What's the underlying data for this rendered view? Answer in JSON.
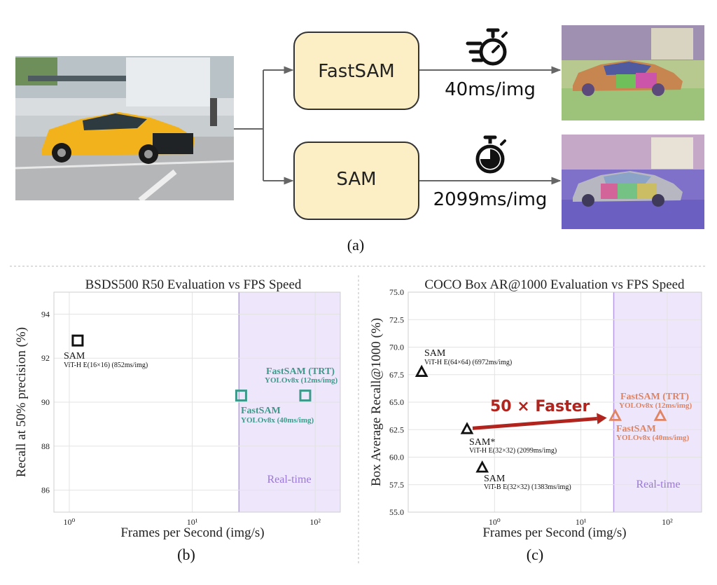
{
  "panel_a": {
    "sublabel": "(a)",
    "fast_box_label": "FastSAM",
    "sam_box_label": "SAM",
    "fast_time": "40ms/img",
    "sam_time": "2099ms/img",
    "icons": [
      "input-car-photo",
      "stopwatch-fast-icon",
      "stopwatch-icon",
      "fastsam-segmentation-photo",
      "sam-segmentation-photo"
    ]
  },
  "panel_b": {
    "sublabel": "(b)",
    "title": "BSDS500 R50 Evaluation vs FPS Speed",
    "xlabel": "Frames per Second (img/s)",
    "ylabel": "Recall at 50% precision (%)",
    "region_label": "Real-time",
    "x_ticks": [
      "10⁰",
      "10¹",
      "10²"
    ],
    "y_ticks": [
      "86",
      "88",
      "90",
      "92",
      "94"
    ],
    "annotations": {
      "sam_name": "SAM",
      "sam_detail": "ViT-H E(16×16) (852ms/img)",
      "trt_name": "FastSAM (TRT)",
      "trt_detail": "YOLOv8x (12ms/img)",
      "fast_name": "FastSAM",
      "fast_detail": "YOLOv8x (40ms/img)"
    },
    "colors": {
      "sam": "#111111",
      "fastsam": "#3d9a8b",
      "realtime": "#eee6fb",
      "realtime_border": "#b79be6",
      "realtime_text": "#9a78d6"
    }
  },
  "panel_c": {
    "sublabel": "(c)",
    "title": "COCO Box AR@1000 Evaluation vs FPS Speed",
    "xlabel": "Frames per Second (img/s)",
    "ylabel": "Box Average Recall@1000 (%)",
    "region_label": "Real-time",
    "arrow_label": "50 × Faster",
    "x_ticks": [
      "10⁰",
      "10¹",
      "10²"
    ],
    "y_ticks": [
      "55.0",
      "57.5",
      "60.0",
      "62.5",
      "65.0",
      "67.5",
      "70.0",
      "72.5",
      "75.0"
    ],
    "annotations": {
      "sam64_name": "SAM",
      "sam64_detail": "ViT-H E(64×64) (6972ms/img)",
      "samstar_name": "SAM*",
      "samstar_detail": "ViT-H E(32×32) (2099ms/img)",
      "samb_name": "SAM",
      "samb_detail": "ViT-B E(32×32) (1383ms/img)",
      "trt_name": "FastSAM (TRT)",
      "trt_detail": "YOLOv8x (12ms/img)",
      "fast_name": "FastSAM",
      "fast_detail": "YOLOv8x (40ms/img)"
    },
    "colors": {
      "sam": "#111111",
      "fastsam": "#e08462",
      "arrow": "#b0241d"
    }
  },
  "chart_data": [
    {
      "type": "scatter",
      "title": "BSDS500 R50 Evaluation vs FPS Speed",
      "xlabel": "Frames per Second (img/s)",
      "ylabel": "Recall at 50% precision (%)",
      "x_scale": "log",
      "xlim": [
        0.75,
        160
      ],
      "ylim": [
        85,
        95
      ],
      "grid": true,
      "realtime_region": [
        24,
        160
      ],
      "series": [
        {
          "name": "SAM",
          "marker": "square",
          "x": [
            1.17
          ],
          "y": [
            92.8
          ]
        },
        {
          "name": "FastSAM",
          "marker": "square",
          "x": [
            25
          ],
          "y": [
            90.3
          ]
        },
        {
          "name": "FastSAM (TRT)",
          "marker": "square",
          "x": [
            83
          ],
          "y": [
            90.3
          ]
        }
      ]
    },
    {
      "type": "scatter",
      "title": "COCO Box AR@1000 Evaluation vs FPS Speed",
      "xlabel": "Frames per Second (img/s)",
      "ylabel": "Box Average Recall@1000 (%)",
      "x_scale": "log",
      "xlim": [
        0.1,
        250
      ],
      "ylim": [
        55.0,
        75.0
      ],
      "grid": true,
      "realtime_region": [
        24,
        250
      ],
      "series": [
        {
          "name": "SAM",
          "marker": "triangle",
          "x": [
            0.143
          ],
          "y": [
            67.7
          ]
        },
        {
          "name": "SAM*",
          "marker": "triangle",
          "x": [
            0.48
          ],
          "y": [
            62.5
          ]
        },
        {
          "name": "SAM",
          "marker": "triangle",
          "x": [
            0.72
          ],
          "y": [
            59.0
          ]
        },
        {
          "name": "FastSAM",
          "marker": "triangle",
          "x": [
            25
          ],
          "y": [
            63.7
          ]
        },
        {
          "name": "FastSAM (TRT)",
          "marker": "triangle",
          "x": [
            83
          ],
          "y": [
            63.7
          ]
        }
      ]
    }
  ]
}
